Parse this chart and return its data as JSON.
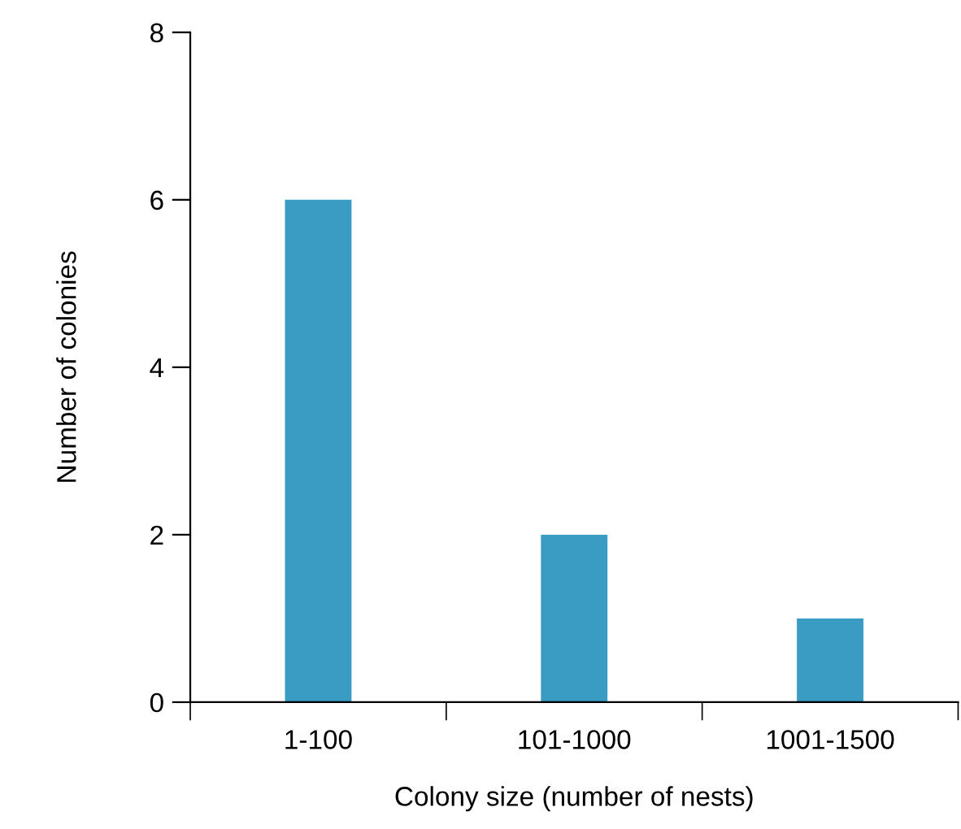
{
  "chart_data": {
    "type": "bar",
    "xlabel": "Colony size (number of nests)",
    "ylabel": "Number of colonies",
    "categories": [
      "1-100",
      "101-1000",
      "1001-1500"
    ],
    "values": [
      6,
      2,
      1
    ],
    "color": "#3a9bc3",
    "ylim": [
      0,
      8
    ],
    "yticks": [
      0,
      2,
      4,
      6,
      8
    ],
    "grid": false,
    "legend": false
  }
}
